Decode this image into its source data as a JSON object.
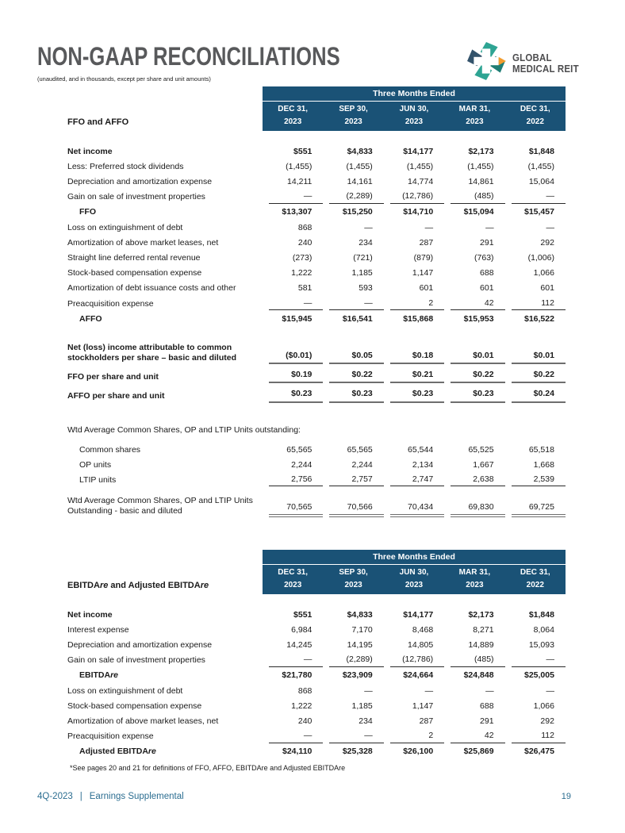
{
  "page": {
    "title": "NON-GAAP RECONCILIATIONS",
    "subtitle": "(unaudited, and in thousands, except per share and unit amounts)",
    "footnote": "*See pages 20 and 21 for definitions of FFO, AFFO, EBITDAre and Adjusted EBITDAre",
    "footer": {
      "quarter": "4Q-2023",
      "divider": "|",
      "label": "Earnings Supplemental",
      "page_number": "19"
    },
    "logo": {
      "line1": "GLOBAL",
      "line2": "MEDICAL REIT"
    }
  },
  "colors": {
    "header_band": "#1a5276",
    "title_text": "#58595b",
    "footer_text": "#2c6e91",
    "logo_teal": "#2ea493",
    "logo_slate": "#33536b",
    "logo_orange": "#f39c2d",
    "rule_grey": "#6e6e6e"
  },
  "tables": [
    {
      "section_label_parts": [
        {
          "t": "FFO and AFFO"
        }
      ],
      "header": {
        "title": "Three Months Ended",
        "columns": [
          [
            "DEC 31,",
            "2023"
          ],
          [
            "SEP 30,",
            "2023"
          ],
          [
            "JUN 30,",
            "2023"
          ],
          [
            "MAR 31,",
            "2023"
          ],
          [
            "DEC 31,",
            "2022"
          ]
        ]
      },
      "rows": [
        {
          "label": "Net income",
          "bold": true,
          "valbold": true,
          "values": [
            "$551",
            "$4,833",
            "$14,177",
            "$2,173",
            "$1,848"
          ]
        },
        {
          "label": "Less: Preferred stock dividends",
          "values": [
            "(1,455)",
            "(1,455)",
            "(1,455)",
            "(1,455)",
            "(1,455)"
          ]
        },
        {
          "label": "Depreciation and amortization expense",
          "values": [
            "14,211",
            "14,161",
            "14,774",
            "14,861",
            "15,064"
          ]
        },
        {
          "label": "Gain on sale of investment properties",
          "values": [
            "—",
            "(2,289)",
            "(12,786)",
            "(485)",
            "—"
          ],
          "rule": "thin"
        },
        {
          "label": "FFO",
          "bold": true,
          "valbold": true,
          "indent": 1,
          "values": [
            "$13,307",
            "$15,250",
            "$14,710",
            "$15,094",
            "$15,457"
          ]
        },
        {
          "label": "Loss on extinguishment of debt",
          "values": [
            "868",
            "—",
            "—",
            "—",
            "—"
          ]
        },
        {
          "label": "Amortization of above market leases, net",
          "values": [
            "240",
            "234",
            "287",
            "291",
            "292"
          ]
        },
        {
          "label": "Straight line deferred rental revenue",
          "values": [
            "(273)",
            "(721)",
            "(879)",
            "(763)",
            "(1,006)"
          ]
        },
        {
          "label": "Stock-based compensation expense",
          "values": [
            "1,222",
            "1,185",
            "1,147",
            "688",
            "1,066"
          ]
        },
        {
          "label": "Amortization of debt issuance costs and other",
          "values": [
            "581",
            "593",
            "601",
            "601",
            "601"
          ]
        },
        {
          "label": "Preacquisition expense",
          "values": [
            "—",
            "—",
            "2",
            "42",
            "112"
          ],
          "rule": "thin"
        },
        {
          "label": "AFFO",
          "bold": true,
          "valbold": true,
          "indent": 1,
          "values": [
            "$15,945",
            "$16,541",
            "$15,868",
            "$15,953",
            "$16,522"
          ]
        },
        {
          "spacer": 22
        },
        {
          "label": "Net (loss) income attributable to common stockholders per share – basic and diluted",
          "bold": true,
          "valbold": true,
          "values": [
            "($0.01)",
            "$0.05",
            "$0.18",
            "$0.01",
            "$0.01"
          ],
          "rule": "thick"
        },
        {
          "label": "FFO per share and unit",
          "bold": true,
          "valbold": true,
          "values": [
            "$0.19",
            "$0.22",
            "$0.21",
            "$0.22",
            "$0.22"
          ],
          "rule": "thick",
          "gap": 5
        },
        {
          "label": "AFFO per share and unit",
          "bold": true,
          "valbold": true,
          "values": [
            "$0.23",
            "$0.23",
            "$0.23",
            "$0.23",
            "$0.24"
          ],
          "rule": "thick",
          "gap": 5
        },
        {
          "spacer": 24
        },
        {
          "label": "Wtd Average Common Shares, OP and LTIP Units outstanding:"
        },
        {
          "label": "Common shares",
          "indent": 1,
          "values": [
            "65,565",
            "65,565",
            "65,544",
            "65,525",
            "65,518"
          ],
          "gap": 5
        },
        {
          "label": "OP units",
          "indent": 1,
          "values": [
            "2,244",
            "2,244",
            "2,134",
            "1,667",
            "1,668"
          ]
        },
        {
          "label": "LTIP units",
          "indent": 1,
          "values": [
            "2,756",
            "2,757",
            "2,747",
            "2,638",
            "2,539"
          ],
          "rule": "thin"
        },
        {
          "spacer": 12
        },
        {
          "label": "Wtd Average Common Shares, OP and LTIP Units Outstanding - basic and diluted",
          "values": [
            "70,565",
            "70,566",
            "70,434",
            "69,830",
            "69,725"
          ],
          "rule": "double"
        }
      ]
    },
    {
      "section_label_parts": [
        {
          "t": "EBITDA"
        },
        {
          "t": "re",
          "i": true
        },
        {
          "t": " and Adjusted EBITDA"
        },
        {
          "t": "re",
          "i": true
        }
      ],
      "header": {
        "title": "Three Months Ended",
        "columns": [
          [
            "DEC 31,",
            "2023"
          ],
          [
            "SEP 30,",
            "2023"
          ],
          [
            "JUN 30,",
            "2023"
          ],
          [
            "MAR 31,",
            "2023"
          ],
          [
            "DEC 31,",
            "2022"
          ]
        ]
      },
      "rows": [
        {
          "label": "Net income",
          "bold": true,
          "valbold": true,
          "values": [
            "$551",
            "$4,833",
            "$14,177",
            "$2,173",
            "$1,848"
          ]
        },
        {
          "label": "Interest expense",
          "values": [
            "6,984",
            "7,170",
            "8,468",
            "8,271",
            "8,064"
          ]
        },
        {
          "label": "Depreciation and amortization expense",
          "values": [
            "14,245",
            "14,195",
            "14,805",
            "14,889",
            "15,093"
          ]
        },
        {
          "label": "Gain on sale of investment properties",
          "values": [
            "—",
            "(2,289)",
            "(12,786)",
            "(485)",
            "—"
          ],
          "rule": "thin"
        },
        {
          "label_parts": [
            {
              "t": "EBITDA"
            },
            {
              "t": "re",
              "i": true
            }
          ],
          "bold": true,
          "valbold": true,
          "indent": 1,
          "values": [
            "$21,780",
            "$23,909",
            "$24,664",
            "$24,848",
            "$25,005"
          ]
        },
        {
          "label": "Loss on extinguishment of debt",
          "values": [
            "868",
            "—",
            "—",
            "—",
            "—"
          ]
        },
        {
          "label": "Stock-based compensation expense",
          "values": [
            "1,222",
            "1,185",
            "1,147",
            "688",
            "1,066"
          ]
        },
        {
          "label": "Amortization of above market leases, net",
          "values": [
            "240",
            "234",
            "287",
            "291",
            "292"
          ]
        },
        {
          "label": "Preacquisition expense",
          "values": [
            "—",
            "—",
            "2",
            "42",
            "112"
          ],
          "rule": "thin"
        },
        {
          "label_parts": [
            {
              "t": "Adjusted EBITDA"
            },
            {
              "t": "re",
              "i": true
            }
          ],
          "bold": true,
          "valbold": true,
          "indent": 1,
          "values": [
            "$24,110",
            "$25,328",
            "$26,100",
            "$25,869",
            "$26,475"
          ]
        }
      ]
    }
  ]
}
